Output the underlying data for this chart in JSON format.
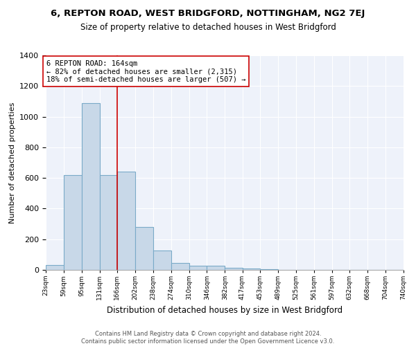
{
  "title": "6, REPTON ROAD, WEST BRIDGFORD, NOTTINGHAM, NG2 7EJ",
  "subtitle": "Size of property relative to detached houses in West Bridgford",
  "xlabel": "Distribution of detached houses by size in West Bridgford",
  "ylabel": "Number of detached properties",
  "bar_color": "#c8d8e8",
  "bar_edge_color": "#7aaac8",
  "background_color": "#eef2fa",
  "grid_color": "#ffffff",
  "vline_x": 166,
  "vline_color": "#cc0000",
  "annotation_box_color": "#cc0000",
  "annotation_text": "6 REPTON ROAD: 164sqm\n← 82% of detached houses are smaller (2,315)\n18% of semi-detached houses are larger (507) →",
  "bin_edges": [
    23,
    59,
    95,
    131,
    166,
    202,
    238,
    274,
    310,
    346,
    382,
    417,
    453,
    489,
    525,
    561,
    597,
    632,
    668,
    704,
    740
  ],
  "bar_heights": [
    30,
    620,
    1090,
    620,
    640,
    280,
    125,
    45,
    25,
    25,
    15,
    10,
    3,
    2,
    2,
    1,
    1,
    1,
    1,
    1
  ],
  "ylim": [
    0,
    1400
  ],
  "yticks": [
    0,
    200,
    400,
    600,
    800,
    1000,
    1200,
    1400
  ],
  "footnote": "Contains HM Land Registry data © Crown copyright and database right 2024.\nContains public sector information licensed under the Open Government Licence v3.0.",
  "tick_labels": [
    "23sqm",
    "59sqm",
    "95sqm",
    "131sqm",
    "166sqm",
    "202sqm",
    "238sqm",
    "274sqm",
    "310sqm",
    "346sqm",
    "382sqm",
    "417sqm",
    "453sqm",
    "489sqm",
    "525sqm",
    "561sqm",
    "597sqm",
    "632sqm",
    "668sqm",
    "704sqm",
    "740sqm"
  ],
  "title_fontsize": 9.5,
  "subtitle_fontsize": 8.5,
  "ylabel_fontsize": 8,
  "xlabel_fontsize": 8.5,
  "ytick_fontsize": 8,
  "xtick_fontsize": 6.5,
  "footnote_fontsize": 6,
  "annotation_fontsize": 7.5
}
